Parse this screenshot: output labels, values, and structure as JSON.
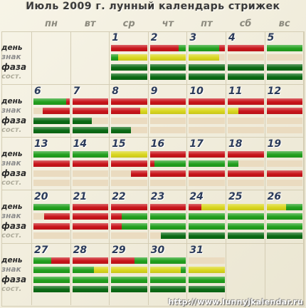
{
  "title": "Июль 2009 г. лунный календарь стрижек",
  "weekdays": [
    "пн",
    "вт",
    "ср",
    "чт",
    "пт",
    "сб",
    "вс"
  ],
  "row_labels": [
    "день",
    "знак",
    "фаза",
    "сост."
  ],
  "footer_url": "http://www.lunnyjkalendar.ru",
  "colors": {
    "G": "#22a01e",
    "R": "#c8141a",
    "Y": "#d9d61e",
    "D": "#0a6a14",
    "E": "#eadbc0"
  },
  "chart_data": {
    "type": "table",
    "month": "Июль 2009",
    "rows": [
      "день",
      "знак",
      "фаза",
      "сост."
    ],
    "legend_colors": {
      "G": "green",
      "R": "red",
      "Y": "yellow",
      "D": "dark green",
      "E": "empty"
    },
    "days": [
      {
        "day": 1,
        "col": 2,
        "week": 0,
        "bars": [
          [
            [
              "R",
              1.0
            ]
          ],
          [
            [
              "G",
              0.2
            ],
            [
              "Y",
              0.8
            ]
          ],
          [
            [
              "D",
              1.0
            ]
          ],
          [
            [
              "D",
              1.0
            ]
          ]
        ]
      },
      {
        "day": 2,
        "col": 3,
        "week": 0,
        "bars": [
          [
            [
              "R",
              0.8
            ],
            [
              "G",
              0.2
            ]
          ],
          [
            [
              "Y",
              1.0
            ]
          ],
          [
            [
              "D",
              1.0
            ]
          ],
          [
            [
              "D",
              1.0
            ]
          ]
        ]
      },
      {
        "day": 3,
        "col": 4,
        "week": 0,
        "bars": [
          [
            [
              "G",
              0.85
            ],
            [
              "R",
              0.15
            ]
          ],
          [
            [
              "Y",
              0.85
            ],
            [
              "E",
              0.15
            ]
          ],
          [
            [
              "D",
              1.0
            ]
          ],
          [
            [
              "D",
              1.0
            ]
          ]
        ]
      },
      {
        "day": 4,
        "col": 5,
        "week": 0,
        "bars": [
          [
            [
              "R",
              1.0
            ]
          ],
          [
            [
              "E",
              1.0
            ]
          ],
          [
            [
              "D",
              1.0
            ]
          ],
          [
            [
              "D",
              1.0
            ]
          ]
        ]
      },
      {
        "day": 5,
        "col": 6,
        "week": 0,
        "bars": [
          [
            [
              "G",
              1.0
            ]
          ],
          [
            [
              "E",
              1.0
            ]
          ],
          [
            [
              "D",
              1.0
            ]
          ],
          [
            [
              "D",
              1.0
            ]
          ]
        ]
      },
      {
        "day": 6,
        "col": 0,
        "week": 1,
        "bars": [
          [
            [
              "G",
              0.9
            ],
            [
              "R",
              0.1
            ]
          ],
          [
            [
              "E",
              0.25
            ],
            [
              "R",
              0.75
            ]
          ],
          [
            [
              "D",
              1.0
            ]
          ],
          [
            [
              "D",
              1.0
            ]
          ]
        ]
      },
      {
        "day": 7,
        "col": 1,
        "week": 1,
        "bars": [
          [
            [
              "R",
              1.0
            ]
          ],
          [
            [
              "R",
              1.0
            ]
          ],
          [
            [
              "D",
              0.55
            ],
            [
              "E",
              0.45
            ]
          ],
          [
            [
              "D",
              1.0
            ]
          ]
        ]
      },
      {
        "day": 8,
        "col": 2,
        "week": 1,
        "bars": [
          [
            [
              "R",
              1.0
            ]
          ],
          [
            [
              "R",
              0.8
            ],
            [
              "Y",
              0.2
            ]
          ],
          [
            [
              "E",
              1.0
            ]
          ],
          [
            [
              "D",
              0.55
            ],
            [
              "E",
              0.45
            ]
          ]
        ]
      },
      {
        "day": 9,
        "col": 3,
        "week": 1,
        "bars": [
          [
            [
              "R",
              1.0
            ]
          ],
          [
            [
              "Y",
              1.0
            ]
          ],
          [
            [
              "E",
              1.0
            ]
          ],
          [
            [
              "E",
              1.0
            ]
          ]
        ]
      },
      {
        "day": 10,
        "col": 4,
        "week": 1,
        "bars": [
          [
            [
              "R",
              1.0
            ]
          ],
          [
            [
              "Y",
              1.0
            ]
          ],
          [
            [
              "E",
              1.0
            ]
          ],
          [
            [
              "E",
              1.0
            ]
          ]
        ]
      },
      {
        "day": 11,
        "col": 5,
        "week": 1,
        "bars": [
          [
            [
              "R",
              1.0
            ]
          ],
          [
            [
              "Y",
              0.3
            ],
            [
              "R",
              0.7
            ]
          ],
          [
            [
              "E",
              1.0
            ]
          ],
          [
            [
              "E",
              1.0
            ]
          ]
        ]
      },
      {
        "day": 12,
        "col": 6,
        "week": 1,
        "bars": [
          [
            [
              "R",
              1.0
            ]
          ],
          [
            [
              "R",
              1.0
            ]
          ],
          [
            [
              "E",
              1.0
            ]
          ],
          [
            [
              "E",
              1.0
            ]
          ]
        ]
      },
      {
        "day": 13,
        "col": 0,
        "week": 2,
        "bars": [
          [
            [
              "G",
              1.0
            ]
          ],
          [
            [
              "R",
              1.0
            ]
          ],
          [
            [
              "E",
              1.0
            ]
          ],
          [
            [
              "E",
              1.0
            ]
          ]
        ]
      },
      {
        "day": 14,
        "col": 1,
        "week": 2,
        "bars": [
          [
            [
              "G",
              1.0
            ]
          ],
          [
            [
              "R",
              1.0
            ]
          ],
          [
            [
              "E",
              1.0
            ]
          ],
          [
            [
              "E",
              1.0
            ]
          ]
        ]
      },
      {
        "day": 15,
        "col": 2,
        "week": 2,
        "bars": [
          [
            [
              "Y",
              1.0
            ]
          ],
          [
            [
              "R",
              1.0
            ]
          ],
          [
            [
              "E",
              0.55
            ],
            [
              "R",
              0.45
            ]
          ],
          [
            [
              "E",
              1.0
            ]
          ]
        ]
      },
      {
        "day": 16,
        "col": 3,
        "week": 2,
        "bars": [
          [
            [
              "R",
              1.0
            ]
          ],
          [
            [
              "R",
              0.12
            ],
            [
              "G",
              0.88
            ]
          ],
          [
            [
              "R",
              1.0
            ]
          ],
          [
            [
              "E",
              1.0
            ]
          ]
        ]
      },
      {
        "day": 17,
        "col": 4,
        "week": 2,
        "bars": [
          [
            [
              "R",
              1.0
            ]
          ],
          [
            [
              "G",
              1.0
            ]
          ],
          [
            [
              "R",
              1.0
            ]
          ],
          [
            [
              "E",
              1.0
            ]
          ]
        ]
      },
      {
        "day": 18,
        "col": 5,
        "week": 2,
        "bars": [
          [
            [
              "R",
              1.0
            ]
          ],
          [
            [
              "G",
              0.3
            ],
            [
              "E",
              0.7
            ]
          ],
          [
            [
              "R",
              1.0
            ]
          ],
          [
            [
              "E",
              1.0
            ]
          ]
        ]
      },
      {
        "day": 19,
        "col": 6,
        "week": 2,
        "bars": [
          [
            [
              "G",
              1.0
            ]
          ],
          [
            [
              "E",
              1.0
            ]
          ],
          [
            [
              "R",
              1.0
            ]
          ],
          [
            [
              "E",
              1.0
            ]
          ]
        ]
      },
      {
        "day": 20,
        "col": 0,
        "week": 3,
        "bars": [
          [
            [
              "G",
              1.0
            ]
          ],
          [
            [
              "E",
              0.3
            ],
            [
              "R",
              0.7
            ]
          ],
          [
            [
              "R",
              1.0
            ]
          ],
          [
            [
              "E",
              1.0
            ]
          ]
        ]
      },
      {
        "day": 21,
        "col": 1,
        "week": 3,
        "bars": [
          [
            [
              "R",
              1.0
            ]
          ],
          [
            [
              "R",
              1.0
            ]
          ],
          [
            [
              "R",
              1.0
            ]
          ],
          [
            [
              "E",
              1.0
            ]
          ]
        ]
      },
      {
        "day": 22,
        "col": 2,
        "week": 3,
        "bars": [
          [
            [
              "R",
              1.0
            ]
          ],
          [
            [
              "R",
              0.3
            ],
            [
              "G",
              0.7
            ]
          ],
          [
            [
              "R",
              0.3
            ],
            [
              "G",
              0.7
            ]
          ],
          [
            [
              "E",
              1.0
            ]
          ]
        ]
      },
      {
        "day": 23,
        "col": 3,
        "week": 3,
        "bars": [
          [
            [
              "R",
              1.0
            ]
          ],
          [
            [
              "G",
              1.0
            ]
          ],
          [
            [
              "G",
              1.0
            ]
          ],
          [
            [
              "E",
              0.3
            ],
            [
              "D",
              0.7
            ]
          ]
        ]
      },
      {
        "day": 24,
        "col": 4,
        "week": 3,
        "bars": [
          [
            [
              "R",
              0.35
            ],
            [
              "Y",
              0.65
            ]
          ],
          [
            [
              "G",
              1.0
            ]
          ],
          [
            [
              "G",
              1.0
            ]
          ],
          [
            [
              "D",
              1.0
            ]
          ]
        ]
      },
      {
        "day": 25,
        "col": 5,
        "week": 3,
        "bars": [
          [
            [
              "Y",
              1.0
            ]
          ],
          [
            [
              "G",
              1.0
            ]
          ],
          [
            [
              "G",
              1.0
            ]
          ],
          [
            [
              "D",
              1.0
            ]
          ]
        ]
      },
      {
        "day": 26,
        "col": 6,
        "week": 3,
        "bars": [
          [
            [
              "Y",
              0.55
            ],
            [
              "G",
              0.45
            ]
          ],
          [
            [
              "G",
              1.0
            ]
          ],
          [
            [
              "G",
              1.0
            ]
          ],
          [
            [
              "D",
              1.0
            ]
          ]
        ]
      },
      {
        "day": 27,
        "col": 0,
        "week": 4,
        "bars": [
          [
            [
              "G",
              0.5
            ],
            [
              "R",
              0.5
            ]
          ],
          [
            [
              "G",
              1.0
            ]
          ],
          [
            [
              "G",
              1.0
            ]
          ],
          [
            [
              "D",
              1.0
            ]
          ]
        ]
      },
      {
        "day": 28,
        "col": 1,
        "week": 4,
        "bars": [
          [
            [
              "R",
              1.0
            ]
          ],
          [
            [
              "G",
              0.6
            ],
            [
              "Y",
              0.4
            ]
          ],
          [
            [
              "G",
              1.0
            ]
          ],
          [
            [
              "D",
              1.0
            ]
          ]
        ]
      },
      {
        "day": 29,
        "col": 2,
        "week": 4,
        "bars": [
          [
            [
              "R",
              0.65
            ],
            [
              "G",
              0.35
            ]
          ],
          [
            [
              "Y",
              1.0
            ]
          ],
          [
            [
              "G",
              1.0
            ]
          ],
          [
            [
              "D",
              1.0
            ]
          ]
        ]
      },
      {
        "day": 30,
        "col": 3,
        "week": 4,
        "bars": [
          [
            [
              "G",
              1.0
            ]
          ],
          [
            [
              "Y",
              0.85
            ],
            [
              "G",
              0.15
            ]
          ],
          [
            [
              "G",
              1.0
            ]
          ],
          [
            [
              "D",
              1.0
            ]
          ]
        ]
      },
      {
        "day": 31,
        "col": 4,
        "week": 4,
        "bars": [
          [
            [
              "E",
              1.0
            ]
          ],
          [
            [
              "Y",
              1.0
            ]
          ],
          [
            [
              "G",
              1.0
            ]
          ],
          [
            [
              "D",
              1.0
            ]
          ]
        ]
      }
    ]
  }
}
